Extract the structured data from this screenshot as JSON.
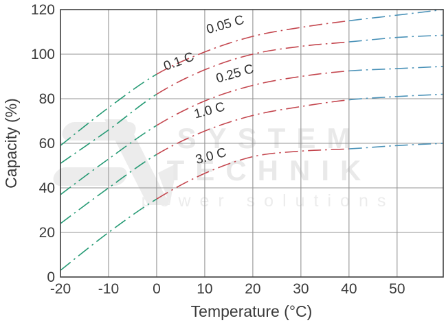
{
  "chart_data": {
    "type": "line",
    "x": [
      -20,
      -10,
      0,
      10,
      20,
      30,
      40,
      50,
      59.6
    ],
    "series": [
      {
        "name": "0.05 C",
        "values": [
          59,
          76,
          91,
          101,
          108,
          112,
          115,
          117.5,
          120
        ]
      },
      {
        "name": "0.1 C",
        "values": [
          51,
          66,
          82,
          93,
          100,
          103.5,
          105.5,
          107.5,
          108.5
        ]
      },
      {
        "name": "0.25 C",
        "values": [
          37,
          53,
          68,
          79,
          86,
          90,
          92.5,
          93.5,
          94.5
        ]
      },
      {
        "name": "1.0 C",
        "values": [
          24,
          40,
          55,
          65.5,
          72.5,
          76.5,
          79.5,
          81,
          82
        ]
      },
      {
        "name": "3.0 C",
        "values": [
          3,
          20,
          35,
          46.5,
          54,
          56.5,
          57.5,
          59,
          60
        ]
      }
    ],
    "xlabel": "Temperature (°C)",
    "ylabel": "Capacity (%)",
    "xlim": [
      -20,
      59.6
    ],
    "ylim": [
      0,
      120
    ],
    "x_ticks": [
      -20,
      -10,
      0,
      10,
      20,
      30,
      40,
      50
    ],
    "y_ticks": [
      0,
      20,
      40,
      60,
      80,
      100,
      120
    ],
    "grid": true,
    "legend_position": "inline-curve-labels",
    "line_style": "dash-dot",
    "color_breaks": [
      0,
      40
    ],
    "segment_colors": {
      "cold": "#259a74",
      "mid": "#c4474f",
      "hot": "#4a92b8"
    },
    "grid_color": "#949494",
    "border_color": "#3f3f3f"
  },
  "curve_labels": [
    {
      "text": "0.05 C",
      "T": 14.5,
      "cap": 111.5,
      "angle": -16
    },
    {
      "text": "0.1 C",
      "T": 4.9,
      "cap": 95,
      "angle": -20
    },
    {
      "text": "0.25 C",
      "T": 16.5,
      "cap": 89.5,
      "angle": -16
    },
    {
      "text": "1.0 C",
      "T": 11.2,
      "cap": 73,
      "angle": -15
    },
    {
      "text": "3.0 C",
      "T": 11.5,
      "cap": 52.5,
      "angle": -15
    }
  ],
  "watermark": {
    "line1": "SYSTEM",
    "line2": "TECHNIK",
    "line3": "power solutions"
  }
}
